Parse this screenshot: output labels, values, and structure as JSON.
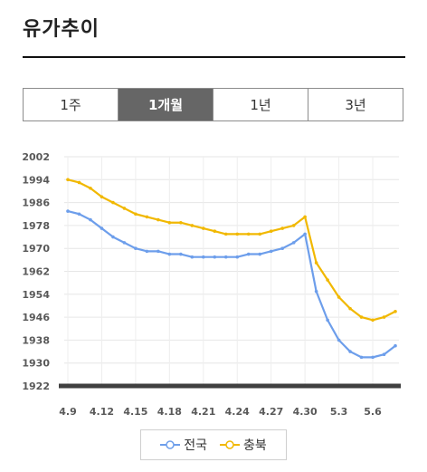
{
  "page": {
    "title": "유가추이"
  },
  "tabs": [
    {
      "label": "1주",
      "active": false
    },
    {
      "label": "1개월",
      "active": true
    },
    {
      "label": "1년",
      "active": false
    },
    {
      "label": "3년",
      "active": false
    }
  ],
  "chart_data": {
    "type": "line",
    "x": [
      "4.9",
      "4.10",
      "4.11",
      "4.12",
      "4.13",
      "4.14",
      "4.15",
      "4.16",
      "4.17",
      "4.18",
      "4.19",
      "4.20",
      "4.21",
      "4.22",
      "4.23",
      "4.24",
      "4.25",
      "4.26",
      "4.27",
      "4.28",
      "4.29",
      "4.30",
      "5.1",
      "5.2",
      "5.3",
      "5.4",
      "5.5",
      "5.6",
      "5.7",
      "5.8"
    ],
    "x_tick_labels": [
      "4.9",
      "4.12",
      "4.15",
      "4.18",
      "4.21",
      "4.24",
      "4.27",
      "4.30",
      "5.3",
      "5.6"
    ],
    "y_tick_labels": [
      "2002",
      "1994",
      "1986",
      "1978",
      "1970",
      "1962",
      "1954",
      "1946",
      "1938",
      "1930",
      "1922"
    ],
    "ylim": [
      1922,
      2002
    ],
    "grid": true,
    "legend_position": "bottom",
    "series": [
      {
        "name": "전국",
        "color": "#6d9eeb",
        "values": [
          1983,
          1982,
          1980,
          1977,
          1974,
          1972,
          1970,
          1969,
          1969,
          1968,
          1968,
          1967,
          1967,
          1967,
          1967,
          1967,
          1968,
          1968,
          1969,
          1970,
          1972,
          1975,
          1955,
          1945,
          1938,
          1934,
          1932,
          1932,
          1933,
          1936
        ]
      },
      {
        "name": "충북",
        "color": "#f1b800",
        "values": [
          1994,
          1993,
          1991,
          1988,
          1986,
          1984,
          1982,
          1981,
          1980,
          1979,
          1979,
          1978,
          1977,
          1976,
          1975,
          1975,
          1975,
          1975,
          1976,
          1977,
          1978,
          1981,
          1965,
          1959,
          1953,
          1949,
          1946,
          1945,
          1946,
          1948
        ]
      }
    ]
  }
}
